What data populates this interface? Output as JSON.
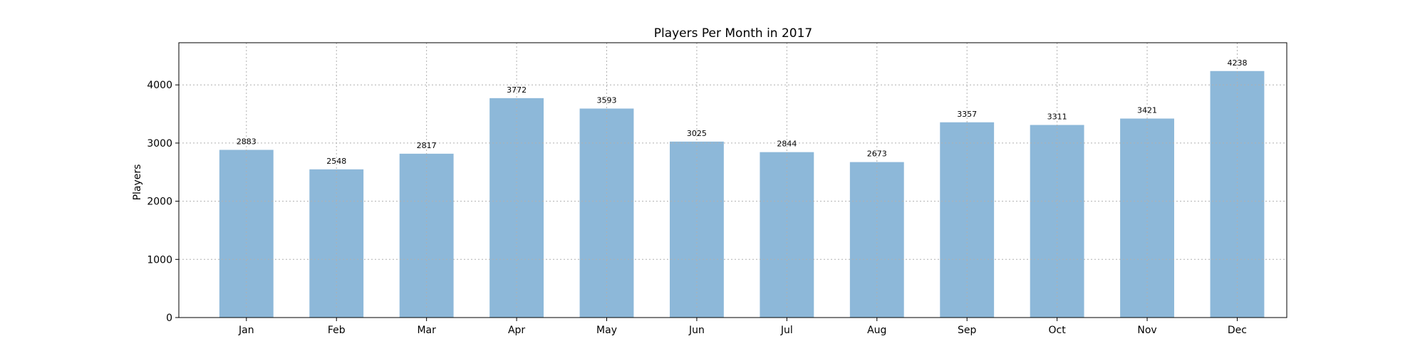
{
  "chart_data": {
    "type": "bar",
    "title": "Players Per Month in 2017",
    "xlabel": "",
    "ylabel": "Players",
    "categories": [
      "Jan",
      "Feb",
      "Mar",
      "Apr",
      "May",
      "Jun",
      "Jul",
      "Aug",
      "Sep",
      "Oct",
      "Nov",
      "Dec"
    ],
    "values": [
      2883,
      2548,
      2817,
      3772,
      3593,
      3025,
      2844,
      2673,
      3357,
      3311,
      3421,
      4238
    ],
    "ylim": [
      0,
      4725
    ],
    "yticks": [
      0,
      1000,
      2000,
      3000,
      4000
    ],
    "grid": true,
    "bar_color": "#8db8d9",
    "grid_color": "#b0b0b0",
    "show_value_labels": true
  }
}
